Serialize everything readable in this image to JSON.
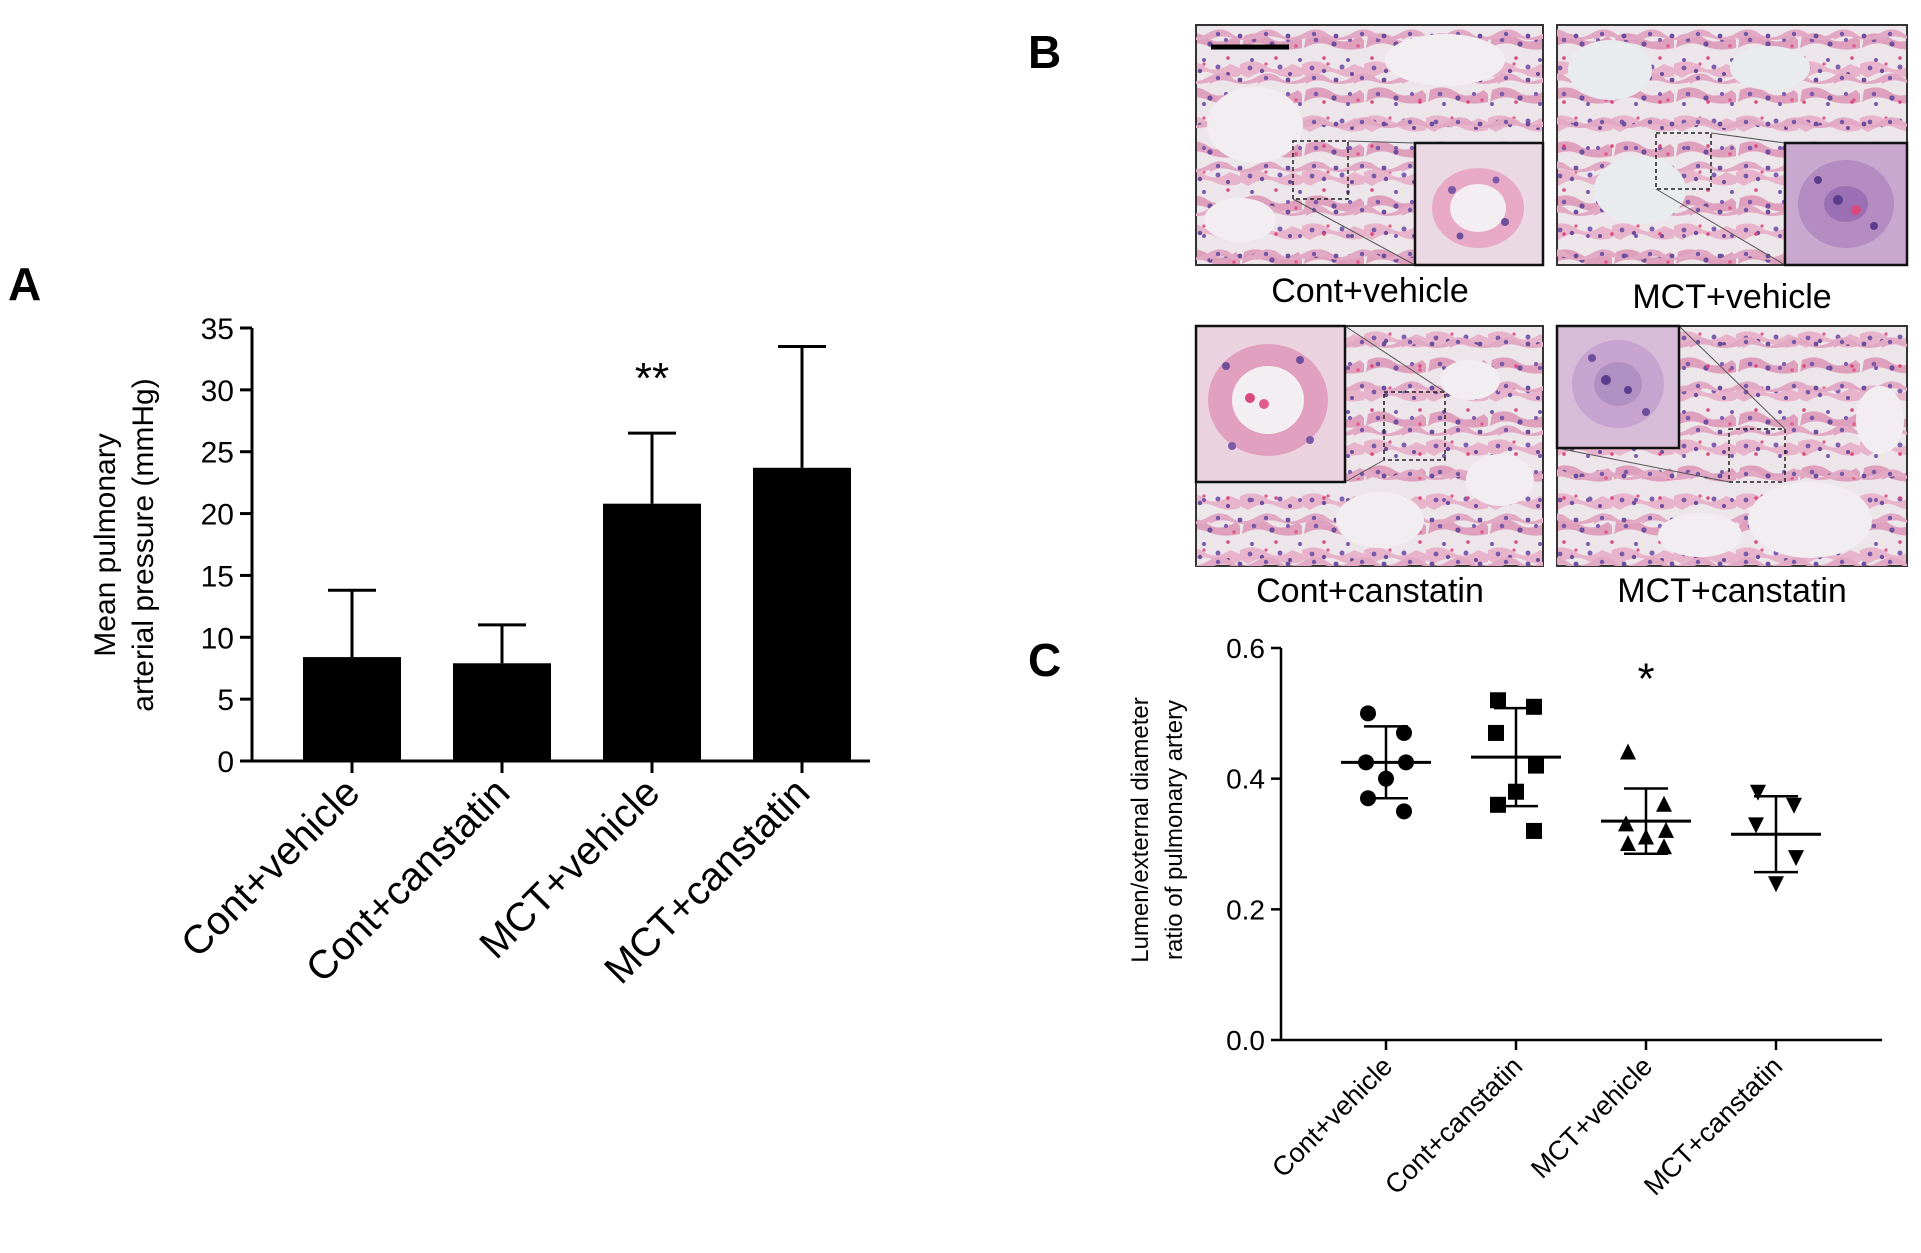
{
  "panels": {
    "A": {
      "letter": "A"
    },
    "B": {
      "letter": "B"
    },
    "C": {
      "letter": "C"
    }
  },
  "micrographs": [
    {
      "label": "Cont+vehicle",
      "inset_corner": "bottom-right",
      "scale_bar": true
    },
    {
      "label": "MCT+vehicle",
      "inset_corner": "bottom-right",
      "scale_bar": false
    },
    {
      "label": "Cont+canstatin",
      "inset_corner": "top-left",
      "scale_bar": false
    },
    {
      "label": "MCT+canstatin",
      "inset_corner": "top-left",
      "scale_bar": false
    }
  ],
  "colors": {
    "bar": "#000000",
    "tissue_background": "#ece6ea",
    "tissue_pink": "#e6a6c2",
    "tissue_purple": "#7a5aa8"
  },
  "chart_data": [
    {
      "panel": "A",
      "type": "bar",
      "ylabel": [
        "Mean pulmonary",
        "arterial pressure (mmHg)"
      ],
      "ylim": [
        0,
        35
      ],
      "yticks": [
        "0",
        "5",
        "10",
        "15",
        "20",
        "25",
        "30",
        "35"
      ],
      "categories": [
        "Cont+vehicle",
        "Cont+canstatin",
        "MCT+vehicle",
        "MCT+canstatin"
      ],
      "values": [
        8.4,
        7.9,
        20.8,
        23.7
      ],
      "error_upper": [
        13.8,
        11.0,
        26.5,
        33.5
      ],
      "annotations": [
        {
          "category": "MCT+vehicle",
          "text": "**"
        }
      ]
    },
    {
      "panel": "C",
      "type": "scatter",
      "ylabel": [
        "Lumen/external diameter",
        "ratio of pulmonary artery"
      ],
      "ylim": [
        0,
        0.6
      ],
      "yticks": [
        "0.0",
        "0.2",
        "0.4",
        "0.6"
      ],
      "categories": [
        "Cont+vehicle",
        "Cont+canstatin",
        "MCT+vehicle",
        "MCT+canstatin"
      ],
      "markers": [
        "circle",
        "square",
        "triangle-up",
        "triangle-down"
      ],
      "points": [
        [
          0.5,
          0.47,
          0.425,
          0.425,
          0.4,
          0.37,
          0.35
        ],
        [
          0.52,
          0.51,
          0.47,
          0.42,
          0.38,
          0.36,
          0.32
        ],
        [
          0.44,
          0.36,
          0.33,
          0.32,
          0.31,
          0.3,
          0.295
        ],
        [
          0.38,
          0.36,
          0.33,
          0.28,
          0.24
        ]
      ],
      "mean": [
        0.425,
        0.433,
        0.335,
        0.315
      ],
      "sd": [
        0.055,
        0.075,
        0.05,
        0.058
      ],
      "annotations": [
        {
          "category": "MCT+vehicle",
          "text": "*"
        }
      ]
    }
  ]
}
